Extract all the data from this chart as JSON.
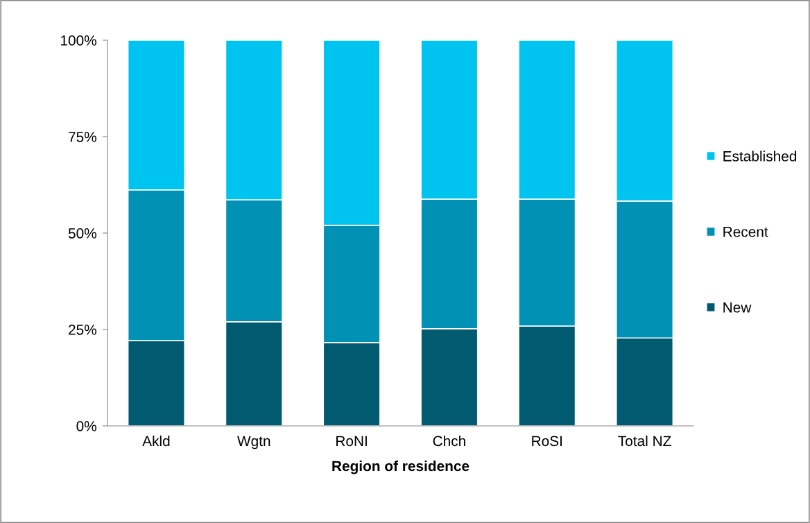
{
  "chart_data": {
    "type": "bar",
    "stacked": true,
    "xlabel": "Region of residence",
    "categories": [
      "Akld",
      "Wgtn",
      "RoNI",
      "Chch",
      "RoSI",
      "Total NZ"
    ],
    "series": [
      {
        "name": "New",
        "color": "#005a70",
        "values": [
          22.1,
          27.0,
          21.6,
          25.2,
          25.9,
          22.8
        ]
      },
      {
        "name": "Recent",
        "color": "#0091b4",
        "values": [
          39.1,
          31.6,
          30.4,
          33.6,
          32.9,
          35.5
        ]
      },
      {
        "name": "Established",
        "color": "#00c4f0",
        "values": [
          38.8,
          41.4,
          48.0,
          41.2,
          41.2,
          41.7
        ]
      }
    ],
    "ylim": [
      0,
      100
    ],
    "yticks": [
      {
        "value": 0,
        "label": "0%"
      },
      {
        "value": 25,
        "label": "25%"
      },
      {
        "value": 50,
        "label": "50%"
      },
      {
        "value": 75,
        "label": "75%"
      },
      {
        "value": 100,
        "label": "100%"
      }
    ],
    "grid": false,
    "legend": "right"
  }
}
